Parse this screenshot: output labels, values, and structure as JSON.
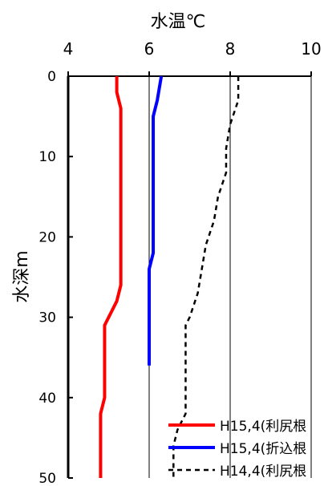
{
  "chart_data": {
    "type": "line",
    "orientation": "depth-profile",
    "xlabel": "水温℃",
    "ylabel": "水深m",
    "xlim": [
      4,
      10
    ],
    "ylim": [
      0,
      50
    ],
    "y_inverted": true,
    "x_axis_position": "top",
    "x_ticks": [
      "4",
      "6",
      "8",
      "10"
    ],
    "y_ticks": [
      "0",
      "10",
      "20",
      "30",
      "40",
      "50"
    ],
    "grid": "vertical",
    "legend_position": "bottom-right",
    "series": [
      {
        "name": "H15,4(利尻根",
        "color": "#ff0000",
        "style": "solid",
        "points": [
          [
            5.2,
            0
          ],
          [
            5.2,
            2
          ],
          [
            5.3,
            4
          ],
          [
            5.3,
            6
          ],
          [
            5.3,
            8
          ],
          [
            5.3,
            10
          ],
          [
            5.3,
            12
          ],
          [
            5.3,
            14
          ],
          [
            5.3,
            16
          ],
          [
            5.3,
            18
          ],
          [
            5.3,
            20
          ],
          [
            5.3,
            22
          ],
          [
            5.3,
            24
          ],
          [
            5.3,
            26
          ],
          [
            5.2,
            28
          ],
          [
            4.9,
            31
          ],
          [
            4.9,
            33
          ],
          [
            4.9,
            35
          ],
          [
            4.9,
            38
          ],
          [
            4.9,
            40
          ],
          [
            4.8,
            42
          ],
          [
            4.8,
            44
          ],
          [
            4.8,
            46
          ],
          [
            4.8,
            48
          ],
          [
            4.8,
            50
          ]
        ]
      },
      {
        "name": "H15,4(折込根",
        "color": "#0000ff",
        "style": "solid",
        "points": [
          [
            6.3,
            0
          ],
          [
            6.2,
            3
          ],
          [
            6.1,
            5
          ],
          [
            6.1,
            7
          ],
          [
            6.1,
            10
          ],
          [
            6.1,
            12
          ],
          [
            6.1,
            14
          ],
          [
            6.1,
            16
          ],
          [
            6.1,
            18
          ],
          [
            6.1,
            20
          ],
          [
            6.1,
            22
          ],
          [
            6.0,
            24
          ],
          [
            6.0,
            27
          ],
          [
            6.0,
            30
          ],
          [
            6.0,
            33
          ],
          [
            6.0,
            36
          ]
        ]
      },
      {
        "name": "H14,4(利尻根",
        "color": "#000000",
        "style": "dashed",
        "points": [
          [
            8.2,
            0
          ],
          [
            8.2,
            3
          ],
          [
            8.0,
            6
          ],
          [
            7.9,
            9
          ],
          [
            7.9,
            12
          ],
          [
            7.7,
            15
          ],
          [
            7.6,
            18
          ],
          [
            7.4,
            21
          ],
          [
            7.3,
            24
          ],
          [
            7.2,
            27
          ],
          [
            7.0,
            30
          ],
          [
            6.9,
            31
          ],
          [
            6.9,
            34
          ],
          [
            6.9,
            37
          ],
          [
            6.9,
            40
          ],
          [
            6.9,
            42
          ],
          [
            6.7,
            44
          ],
          [
            6.6,
            46
          ],
          [
            6.6,
            48
          ],
          [
            6.6,
            50
          ]
        ]
      }
    ]
  }
}
